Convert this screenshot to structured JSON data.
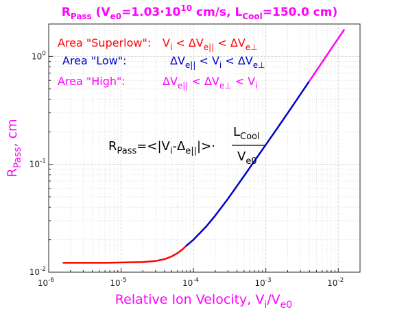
{
  "title": {
    "main": "R",
    "main_sub": "Pass",
    "p1": " (V",
    "p1_sub": "e0",
    "p2": "=1.03·10",
    "p2_sup": "10",
    "p3": " cm/s, L",
    "p3_sub": "Cool",
    "p4": "=150.0 cm)"
  },
  "axes": {
    "xlabel": {
      "main": "Relative Ion Velocity, V",
      "sub1": "i",
      "mid": "/V",
      "sub2": "e0"
    },
    "ylabel": {
      "main": "R",
      "sub": "Pass",
      "tail": ", cm"
    },
    "xticks": [
      {
        "value": 1e-06,
        "base": "10",
        "exp": "-6"
      },
      {
        "value": 1e-05,
        "base": "10",
        "exp": "-5"
      },
      {
        "value": 0.0001,
        "base": "10",
        "exp": "-4"
      },
      {
        "value": 0.001,
        "base": "10",
        "exp": "-3"
      },
      {
        "value": 0.01,
        "base": "10",
        "exp": "-2"
      }
    ],
    "yticks": [
      {
        "value": 0.01,
        "base": "10",
        "exp": "-2"
      },
      {
        "value": 0.1,
        "base": "10",
        "exp": "-1"
      },
      {
        "value": 1,
        "base": "10",
        "exp": "0"
      }
    ]
  },
  "legend": {
    "superlow": {
      "label": "Area \"Superlow\":",
      "cond": "V",
      "cond_sub": "i",
      "c2": " < ΔV",
      "c2_sub": "e||",
      "c3": " < ΔV",
      "c3_sub": "e⊥"
    },
    "low": {
      "label": "Area \"Low\":",
      "cond": "ΔV",
      "cond_sub": "e||",
      "c2": " < V",
      "c2_sub": "i",
      "c3": " < ΔV",
      "c3_sub": "e⊥"
    },
    "high": {
      "label": "Area \"High\":",
      "cond": "ΔV",
      "cond_sub": "e||",
      "c2": " < ΔV",
      "c2_sub": "e⊥",
      "c3": " < V",
      "c3_sub": "i"
    }
  },
  "formula": {
    "lhs": "R",
    "lhs_sub": "Pass",
    "eq": "=<|V",
    "v_sub": "i",
    "dash": "-Δ",
    "d_sub": "e||",
    "close": "|>·",
    "num": "L",
    "num_sub": "Cool",
    "den": "V",
    "den_sub": "e0"
  },
  "colors": {
    "superlow": "#ff0000",
    "low": "#0000cc",
    "high": "#ff00ff",
    "text": "#ff00ff"
  },
  "chart_data": {
    "type": "line",
    "x_scale": "log",
    "y_scale": "log",
    "xlim": [
      1e-06,
      0.02
    ],
    "ylim": [
      0.01,
      2
    ],
    "grid": true,
    "series": [
      {
        "name": "Area \"Superlow\"",
        "color": "#ff0000",
        "x": [
          1.6e-06,
          3e-06,
          6e-06,
          1e-05,
          2e-05,
          3e-05,
          4e-05,
          5e-05,
          6e-05,
          7e-05,
          8e-05
        ],
        "y": [
          0.0122,
          0.0122,
          0.0122,
          0.0123,
          0.0124,
          0.0127,
          0.0132,
          0.014,
          0.015,
          0.0162,
          0.0176
        ]
      },
      {
        "name": "Area \"Low\"",
        "color": "#0000cc",
        "x": [
          8e-05,
          0.0001,
          0.00015,
          0.0002,
          0.0003,
          0.0005,
          0.0007,
          0.001,
          0.0015,
          0.002,
          0.003,
          0.004
        ],
        "y": [
          0.0176,
          0.02,
          0.0265,
          0.0335,
          0.048,
          0.078,
          0.108,
          0.152,
          0.225,
          0.298,
          0.445,
          0.592
        ]
      },
      {
        "name": "Area \"High\"",
        "color": "#ff00ff",
        "x": [
          0.004,
          0.006,
          0.008,
          0.01,
          0.012
        ],
        "y": [
          0.592,
          0.885,
          1.18,
          1.47,
          1.76
        ]
      }
    ]
  }
}
